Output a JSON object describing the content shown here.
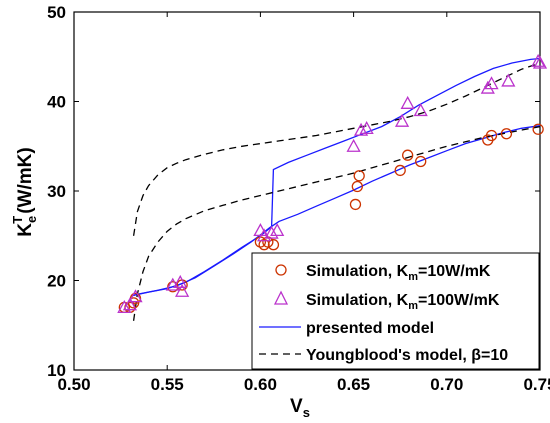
{
  "chart_data": {
    "type": "scatter",
    "xlabel": "V",
    "xlabel_sub": "s",
    "ylabel": "K",
    "ylabel_sub": "e",
    "ylabel_sup": "T",
    "ylabel_unit": "(W/mK)",
    "xlim": [
      0.5,
      0.75
    ],
    "ylim": [
      10,
      50
    ],
    "xticks": [
      0.5,
      0.55,
      0.6,
      0.65,
      0.7,
      0.75
    ],
    "xtick_labels": [
      "0.50",
      "0.55",
      "0.60",
      "0.65",
      "0.70",
      "0.75"
    ],
    "yticks": [
      10,
      20,
      30,
      40,
      50
    ],
    "ytick_labels": [
      "10",
      "20",
      "30",
      "40",
      "50"
    ],
    "grid": false,
    "legend_position": "bottom-right",
    "colors": {
      "sim_km10": "#cc3300",
      "sim_km100": "#bb33cc",
      "presented": "#1a1aff",
      "youngblood": "#000000"
    },
    "series": [
      {
        "id": "sim_km10",
        "legend_prefix": "Simulation, K",
        "legend_sub": "m",
        "legend_suffix": "=10W/mK",
        "kind": "marker",
        "marker": "circle",
        "points": [
          [
            0.527,
            17.0
          ],
          [
            0.53,
            17.0
          ],
          [
            0.532,
            17.5
          ],
          [
            0.533,
            18.0
          ],
          [
            0.553,
            19.3
          ],
          [
            0.558,
            19.5
          ],
          [
            0.6,
            24.3
          ],
          [
            0.602,
            24.0
          ],
          [
            0.604,
            24.3
          ],
          [
            0.607,
            24.0
          ],
          [
            0.651,
            28.5
          ],
          [
            0.652,
            30.5
          ],
          [
            0.653,
            31.7
          ],
          [
            0.675,
            32.3
          ],
          [
            0.679,
            34.0
          ],
          [
            0.686,
            33.3
          ],
          [
            0.722,
            35.7
          ],
          [
            0.724,
            36.2
          ],
          [
            0.732,
            36.4
          ],
          [
            0.749,
            36.9
          ]
        ]
      },
      {
        "id": "sim_km100",
        "legend_prefix": "Simulation, K",
        "legend_sub": "m",
        "legend_suffix": "=100W/mK",
        "kind": "marker",
        "marker": "triangle",
        "points": [
          [
            0.527,
            17.0
          ],
          [
            0.53,
            17.3
          ],
          [
            0.533,
            18.2
          ],
          [
            0.553,
            19.5
          ],
          [
            0.557,
            19.8
          ],
          [
            0.558,
            18.8
          ],
          [
            0.6,
            25.6
          ],
          [
            0.602,
            25.0
          ],
          [
            0.606,
            25.3
          ],
          [
            0.609,
            25.6
          ],
          [
            0.65,
            35.0
          ],
          [
            0.654,
            36.8
          ],
          [
            0.657,
            37.0
          ],
          [
            0.676,
            37.8
          ],
          [
            0.679,
            39.8
          ],
          [
            0.686,
            39.0
          ],
          [
            0.722,
            41.5
          ],
          [
            0.724,
            42.0
          ],
          [
            0.733,
            42.3
          ],
          [
            0.749,
            44.5
          ],
          [
            0.75,
            44.3
          ]
        ]
      },
      {
        "id": "presented_10",
        "legend_label": "presented model",
        "kind": "line",
        "style": "solid",
        "points": [
          [
            0.531,
            18.3
          ],
          [
            0.535,
            18.5
          ],
          [
            0.545,
            18.9
          ],
          [
            0.555,
            19.4
          ],
          [
            0.565,
            20.3
          ],
          [
            0.575,
            21.6
          ],
          [
            0.585,
            22.9
          ],
          [
            0.595,
            24.3
          ],
          [
            0.6,
            25.1
          ],
          [
            0.605,
            25.9
          ],
          [
            0.61,
            26.6
          ],
          [
            0.62,
            27.4
          ],
          [
            0.63,
            28.3
          ],
          [
            0.64,
            29.2
          ],
          [
            0.65,
            30.1
          ],
          [
            0.66,
            31.1
          ],
          [
            0.67,
            32.0
          ],
          [
            0.68,
            32.9
          ],
          [
            0.69,
            33.7
          ],
          [
            0.7,
            34.5
          ],
          [
            0.71,
            35.3
          ],
          [
            0.72,
            35.9
          ],
          [
            0.73,
            36.5
          ],
          [
            0.74,
            37.0
          ],
          [
            0.75,
            37.3
          ]
        ]
      },
      {
        "id": "presented_100",
        "kind": "line",
        "style": "solid",
        "points": [
          [
            0.531,
            18.3
          ],
          [
            0.54,
            18.7
          ],
          [
            0.55,
            19.1
          ],
          [
            0.56,
            19.8
          ],
          [
            0.57,
            21.0
          ],
          [
            0.58,
            22.3
          ],
          [
            0.59,
            23.7
          ],
          [
            0.6,
            25.0
          ],
          [
            0.603,
            25.5
          ],
          [
            0.606,
            26.0
          ],
          [
            0.607,
            32.4
          ],
          [
            0.615,
            33.2
          ],
          [
            0.625,
            34.0
          ],
          [
            0.635,
            34.8
          ],
          [
            0.645,
            35.6
          ],
          [
            0.655,
            36.4
          ],
          [
            0.665,
            37.2
          ],
          [
            0.675,
            38.3
          ],
          [
            0.685,
            39.6
          ],
          [
            0.695,
            40.7
          ],
          [
            0.705,
            41.8
          ],
          [
            0.715,
            42.8
          ],
          [
            0.725,
            43.7
          ],
          [
            0.735,
            44.3
          ],
          [
            0.745,
            44.7
          ],
          [
            0.75,
            44.8
          ]
        ]
      },
      {
        "id": "youngblood_10",
        "legend_label": "Youngblood's model, β=10",
        "kind": "line",
        "style": "dashed",
        "points": [
          [
            0.532,
            15.5
          ],
          [
            0.534,
            18.5
          ],
          [
            0.537,
            21.0
          ],
          [
            0.54,
            22.7
          ],
          [
            0.545,
            24.3
          ],
          [
            0.55,
            25.5
          ],
          [
            0.555,
            26.3
          ],
          [
            0.56,
            26.9
          ],
          [
            0.57,
            27.8
          ],
          [
            0.58,
            28.4
          ],
          [
            0.59,
            29.0
          ],
          [
            0.6,
            29.5
          ],
          [
            0.61,
            30.0
          ],
          [
            0.62,
            30.5
          ],
          [
            0.63,
            31.0
          ],
          [
            0.64,
            31.5
          ],
          [
            0.65,
            32.0
          ],
          [
            0.66,
            32.6
          ],
          [
            0.67,
            33.2
          ],
          [
            0.68,
            33.8
          ],
          [
            0.69,
            34.4
          ],
          [
            0.7,
            35.0
          ],
          [
            0.71,
            35.5
          ],
          [
            0.72,
            36.0
          ],
          [
            0.73,
            36.4
          ],
          [
            0.74,
            36.8
          ],
          [
            0.75,
            37.2
          ]
        ]
      },
      {
        "id": "youngblood_100",
        "kind": "line",
        "style": "dashed",
        "points": [
          [
            0.532,
            25.0
          ],
          [
            0.534,
            27.7
          ],
          [
            0.537,
            29.5
          ],
          [
            0.54,
            30.6
          ],
          [
            0.545,
            31.8
          ],
          [
            0.55,
            32.6
          ],
          [
            0.555,
            33.1
          ],
          [
            0.56,
            33.5
          ],
          [
            0.57,
            34.1
          ],
          [
            0.58,
            34.6
          ],
          [
            0.59,
            35.0
          ],
          [
            0.6,
            35.3
          ],
          [
            0.61,
            35.6
          ],
          [
            0.62,
            35.9
          ],
          [
            0.63,
            36.2
          ],
          [
            0.64,
            36.6
          ],
          [
            0.65,
            37.0
          ],
          [
            0.66,
            37.4
          ],
          [
            0.67,
            37.8
          ],
          [
            0.68,
            38.3
          ],
          [
            0.69,
            38.9
          ],
          [
            0.7,
            39.7
          ],
          [
            0.71,
            40.6
          ],
          [
            0.72,
            41.6
          ],
          [
            0.73,
            42.6
          ],
          [
            0.74,
            43.6
          ],
          [
            0.75,
            44.3
          ]
        ]
      }
    ]
  }
}
